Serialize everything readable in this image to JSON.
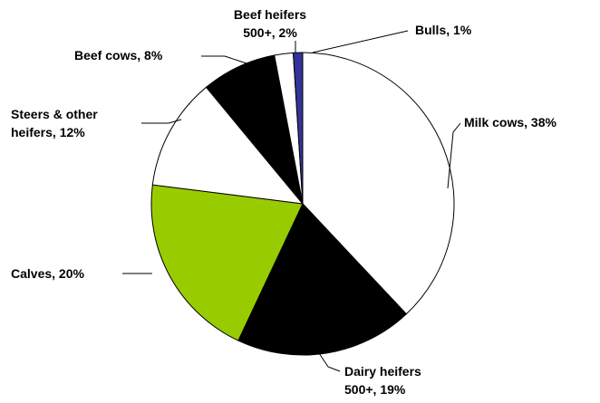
{
  "chart_data": {
    "type": "pie",
    "slices": [
      {
        "label": [
          "Milk cows, 38%"
        ],
        "value": 38,
        "color": "#ffffff"
      },
      {
        "label": [
          "Dairy heifers",
          "500+, 19%"
        ],
        "value": 19,
        "color": "#000000"
      },
      {
        "label": [
          "Calves, 20%"
        ],
        "value": 20,
        "color": "#99cc00"
      },
      {
        "label": [
          "Steers & other",
          "heifers, 12%"
        ],
        "value": 12,
        "color": "#ffffff"
      },
      {
        "label": [
          "Beef cows, 8%"
        ],
        "value": 8,
        "color": "#000000"
      },
      {
        "label": [
          "Beef heifers",
          "500+, 2%"
        ],
        "value": 2,
        "color": "#ffffff"
      },
      {
        "label": [
          "Bulls, 1%"
        ],
        "value": 1,
        "color": "#333399"
      }
    ],
    "start": "12 o'clock",
    "direction": "clockwise",
    "legend": "none"
  }
}
